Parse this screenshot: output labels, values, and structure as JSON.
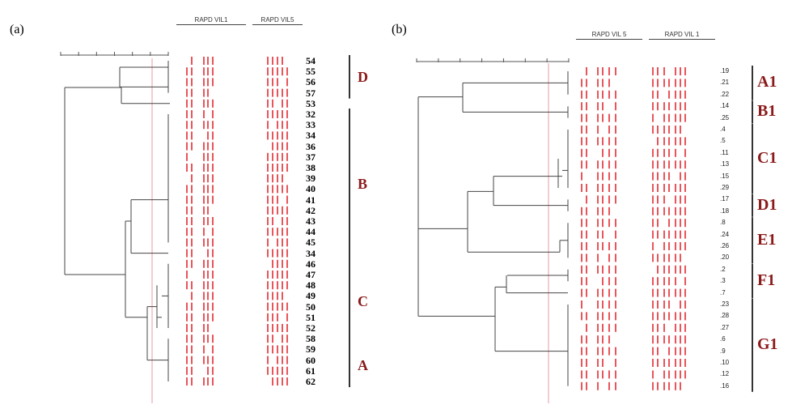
{
  "panel_a": {
    "label": "(a)",
    "headers": [
      "RAPD VIL1",
      "RAPD VIL5"
    ],
    "leaves": [
      "54",
      "55",
      "56",
      "57",
      "53",
      "32",
      "33",
      "34",
      "36",
      "37",
      "38",
      "39",
      "40",
      "41",
      "42",
      "43",
      "44",
      "45",
      "34",
      "46",
      "47",
      "48",
      "49",
      "50",
      "51",
      "52",
      "58",
      "59",
      "60",
      "61",
      "62"
    ],
    "clusters": [
      "D",
      "B",
      "C",
      "A"
    ]
  },
  "panel_b": {
    "label": "(b)",
    "headers": [
      "RAPD VIL 5",
      "RAPD VIL 1"
    ],
    "leaves": [
      ".19",
      ".21",
      ".22",
      ".14",
      ".25",
      ".4",
      ".5",
      ".11",
      ".13",
      ".15",
      ".29",
      ".17",
      ".18",
      ".8",
      ".24",
      ".26",
      ".20",
      ".2",
      ".3",
      ".7",
      ".23",
      ".28",
      ".27",
      ".6",
      ".9",
      ".10",
      ".12",
      ".16"
    ],
    "clusters": [
      "A1",
      "B1",
      "C1",
      "D1",
      "E1",
      "F1",
      "G1"
    ]
  },
  "colors": {
    "band": "#e8555a",
    "cutoff": "#e89aa5",
    "tree": "#444444",
    "cluster_text": "#8b1a1a"
  }
}
